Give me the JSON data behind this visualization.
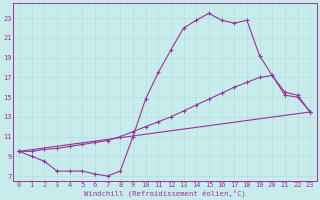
{
  "xlabel": "Windchill (Refroidissement éolien,°C)",
  "bg_color": "#c8ecec",
  "line_color": "#993399",
  "grid_color": "#b0dede",
  "xlim": [
    -0.5,
    23.5
  ],
  "ylim": [
    6.5,
    24.5
  ],
  "yticks": [
    7,
    9,
    11,
    13,
    15,
    17,
    19,
    21,
    23
  ],
  "xticks": [
    0,
    1,
    2,
    3,
    4,
    5,
    6,
    7,
    8,
    9,
    10,
    11,
    12,
    13,
    14,
    15,
    16,
    17,
    18,
    19,
    20,
    21,
    22,
    23
  ],
  "line1_x": [
    0,
    1,
    2,
    3,
    4,
    5,
    6,
    7,
    8,
    9,
    10,
    11,
    12,
    13,
    14,
    15,
    16,
    17,
    18,
    19,
    20,
    21,
    22,
    23
  ],
  "line1_y": [
    9.5,
    9.0,
    8.5,
    7.5,
    7.5,
    7.5,
    7.2,
    7.0,
    7.5,
    11.0,
    14.8,
    17.5,
    19.8,
    22.0,
    22.8,
    23.5,
    22.8,
    22.5,
    22.8,
    19.2,
    17.2,
    15.2,
    15.0,
    13.5
  ],
  "line2_x": [
    0,
    1,
    2,
    3,
    4,
    5,
    6,
    7,
    8,
    9,
    10,
    11,
    12,
    13,
    14,
    15,
    16,
    17,
    18,
    19,
    20,
    21,
    22,
    23
  ],
  "line2_y": [
    9.5,
    9.5,
    9.7,
    9.8,
    10.0,
    10.2,
    10.4,
    10.6,
    11.0,
    11.5,
    12.0,
    12.5,
    13.0,
    13.6,
    14.2,
    14.8,
    15.4,
    16.0,
    16.5,
    17.0,
    17.2,
    15.5,
    15.2,
    13.5
  ],
  "line3_x": [
    0,
    23
  ],
  "line3_y": [
    9.5,
    13.5
  ]
}
